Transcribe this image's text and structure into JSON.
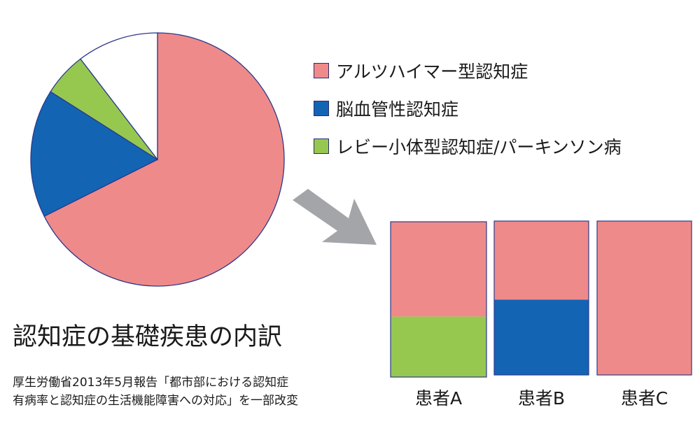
{
  "colors": {
    "alzheimer": "#ef8a8a",
    "vascular": "#1464b4",
    "lewy": "#96c850",
    "other": "#ffffff",
    "outline": "#2b3a8c",
    "arrow": "#a3a5a8"
  },
  "legend": [
    {
      "label": "アルツハイマー型認知症",
      "color": "#ef8a8a"
    },
    {
      "label": "脳血管性認知症",
      "color": "#1464b4"
    },
    {
      "label": "レビー小体型認知症/パーキンソン病",
      "color": "#96c850"
    }
  ],
  "title": "認知症の基礎疾患の内訳",
  "source_lines": [
    "厚生労働省2013年5月報告「都市部における認知症",
    "有病率と認知症の生活機能障害への対応」を一部改変"
  ],
  "chart_data": [
    {
      "type": "pie",
      "slices": [
        {
          "name": "アルツハイマー型認知症",
          "value": 67.6
        },
        {
          "name": "脳血管性認知症",
          "value": 16.4
        },
        {
          "name": "レビー小体型認知症/パーキンソン病",
          "value": 5.6
        },
        {
          "name": "",
          "value": 10.4
        }
      ]
    },
    {
      "type": "bar",
      "stacked": true,
      "categories": [
        "患者A",
        "患者B",
        "患者C"
      ],
      "series": [
        {
          "name": "アルツハイマー型認知症",
          "values": [
            61,
            51,
            100
          ]
        },
        {
          "name": "脳血管性認知症",
          "values": [
            0,
            49,
            0
          ]
        },
        {
          "name": "レビー小体型認知症/パーキンソン病",
          "values": [
            39,
            0,
            0
          ]
        }
      ]
    }
  ]
}
